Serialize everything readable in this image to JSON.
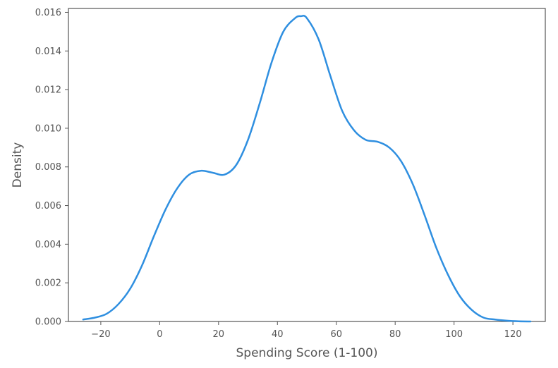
{
  "chart_data": {
    "type": "line",
    "title": "",
    "xlabel": "Spending Score (1-100)",
    "ylabel": "Density",
    "xlim": [
      -31,
      131
    ],
    "ylim": [
      0,
      0.0162
    ],
    "x_ticks": [
      -20,
      0,
      20,
      40,
      60,
      80,
      100,
      120
    ],
    "x_tick_labels": [
      "−20",
      "0",
      "20",
      "40",
      "60",
      "80",
      "100",
      "120"
    ],
    "y_ticks": [
      0,
      0.002,
      0.004,
      0.006,
      0.008,
      0.01,
      0.012,
      0.014,
      0.016
    ],
    "y_tick_labels": [
      "0.000",
      "0.002",
      "0.004",
      "0.006",
      "0.008",
      "0.010",
      "0.012",
      "0.014",
      "0.016"
    ],
    "grid": false,
    "line_color": "#2f8fe0",
    "axes_color": "#555555",
    "series": [
      {
        "x": [
          -26,
          -22,
          -18,
          -14,
          -10,
          -6,
          -2,
          2,
          6,
          10,
          14,
          18,
          22,
          26,
          30,
          34,
          38,
          42,
          46,
          48,
          50,
          54,
          58,
          62,
          66,
          70,
          74,
          78,
          82,
          86,
          90,
          94,
          98,
          102,
          106,
          110,
          114,
          118,
          122,
          126
        ],
        "y": [
          0.0001,
          0.0002,
          0.0004,
          0.0009,
          0.0017,
          0.0029,
          0.0044,
          0.0058,
          0.0069,
          0.0076,
          0.0078,
          0.0077,
          0.0076,
          0.0081,
          0.0094,
          0.0113,
          0.0134,
          0.015,
          0.0157,
          0.0158,
          0.0157,
          0.0146,
          0.0127,
          0.0109,
          0.0099,
          0.0094,
          0.0093,
          0.009,
          0.0083,
          0.0071,
          0.0055,
          0.0038,
          0.0024,
          0.0013,
          0.0006,
          0.0002,
          0.0001,
          4e-05,
          1e-05,
          0.0
        ]
      }
    ]
  }
}
